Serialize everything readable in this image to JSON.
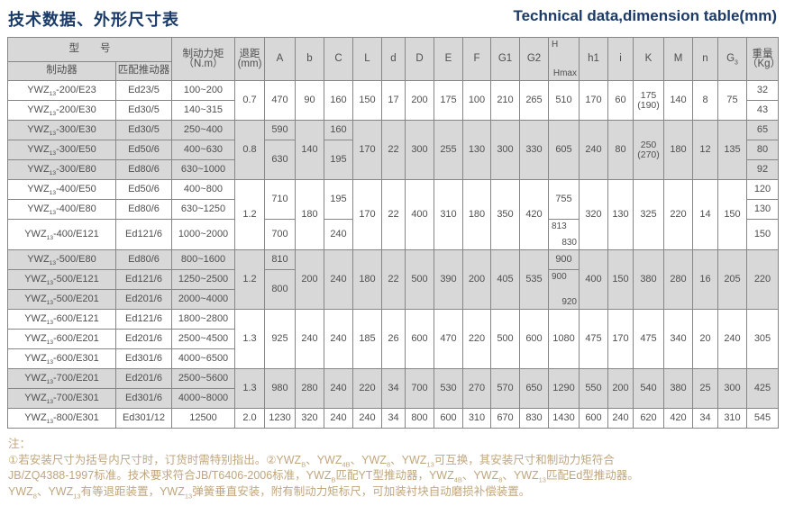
{
  "page": {
    "title_cn": "技术数据、外形尺寸表",
    "title_en": "Technical data,dimension table(mm)"
  },
  "colors": {
    "title_navy": "#1a3a68",
    "header_fill": "#d8d8d8",
    "border_gray": "#868686",
    "note_tan": "#c0a67e"
  },
  "table": {
    "header": {
      "model_group": "型　　号",
      "brake": "制动器",
      "thruster": "匹配推动器",
      "torque_l1": "制动力矩",
      "torque_l2": "（N.m）",
      "gap_l1": "退距",
      "gap_l2": "(mm)",
      "A": "A",
      "b": "b",
      "C": "C",
      "L": "L",
      "d": "d",
      "D": "D",
      "E": "E",
      "F": "F",
      "G1": "G1",
      "G2": "G2",
      "H": "H",
      "Hmax": "Hmax",
      "h1": "h1",
      "i": "i",
      "K": "K",
      "M": "M",
      "n": "n",
      "G3": "G{3}",
      "weight_l1": "重量",
      "weight_l2": "（Kg）"
    },
    "rows": {
      "r1": {
        "model": "YWZ{13}-200/E23",
        "thr": "Ed23/5",
        "tq": "100~200",
        "gap": "0.7",
        "A": "470",
        "b": "90",
        "C": "160",
        "L": "150",
        "d": "17",
        "D": "200",
        "E": "175",
        "F": "100",
        "G1": "210",
        "G2": "265",
        "H": "510",
        "h1": "170",
        "i": "60",
        "K1": "175",
        "K2": "(190)",
        "M": "140",
        "n": "8",
        "G3": "75",
        "wt": "32"
      },
      "r2": {
        "model": "YWZ{13}-200/E30",
        "thr": "Ed30/5",
        "tq": "140~315",
        "wt": "43"
      },
      "r3": {
        "model": "YWZ{13}-300/E30",
        "thr": "Ed30/5",
        "tq": "250~400",
        "gap": "0.8",
        "A": "590",
        "b": "140",
        "C": "160",
        "L": "170",
        "d": "22",
        "D": "300",
        "E": "255",
        "F": "130",
        "G1": "300",
        "G2": "330",
        "H": "605",
        "h1": "240",
        "i": "80",
        "K1": "250",
        "K2": "(270)",
        "M": "180",
        "n": "12",
        "G3": "135",
        "wt": "65"
      },
      "r4": {
        "model": "YWZ{13}-300/E50",
        "thr": "Ed50/6",
        "tq": "400~630",
        "A": "630",
        "C": "195",
        "wt": "80"
      },
      "r5": {
        "model": "YWZ{13}-300/E80",
        "thr": "Ed80/6",
        "tq": "630~1000",
        "wt": "92"
      },
      "r6": {
        "model": "YWZ{13}-400/E50",
        "thr": "Ed50/6",
        "tq": "400~800",
        "gap": "1.2",
        "A": "710",
        "b": "180",
        "C": "195",
        "L": "170",
        "d": "22",
        "D": "400",
        "E": "310",
        "F": "180",
        "G1": "350",
        "G2": "420",
        "H": "755",
        "h1": "320",
        "i": "130",
        "K": "325",
        "M": "220",
        "n": "14",
        "G3": "150",
        "wt": "120"
      },
      "r7": {
        "model": "YWZ{13}-400/E80",
        "thr": "Ed80/6",
        "tq": "630~1250",
        "wt": "130"
      },
      "r8": {
        "model": "YWZ{13}-400/E121",
        "thr": "Ed121/6",
        "tq": "1000~2000",
        "A": "700",
        "C": "240",
        "H_top": "813",
        "H_bot": "830",
        "wt": "150"
      },
      "r9": {
        "model": "YWZ{13}-500/E80",
        "thr": "Ed80/6",
        "tq": "800~1600",
        "gap": "1.2",
        "A": "810",
        "b": "200",
        "C": "240",
        "L": "180",
        "d": "22",
        "D": "500",
        "E": "390",
        "F": "200",
        "G1": "405",
        "G2": "535",
        "H": "900",
        "h1": "400",
        "i": "150",
        "K": "380",
        "M": "280",
        "n": "16",
        "G3": "205",
        "wt": "220"
      },
      "r10": {
        "model": "YWZ{13}-500/E121",
        "thr": "Ed121/6",
        "tq": "1250~2500",
        "A": "800",
        "H_top": "900",
        "H_bot": "920"
      },
      "r11": {
        "model": "YWZ{13}-500/E201",
        "thr": "Ed201/6",
        "tq": "2000~4000"
      },
      "r12": {
        "model": "YWZ{13}-600/E121",
        "thr": "Ed121/6",
        "tq": "1800~2800",
        "gap": "1.3",
        "A": "925",
        "b": "240",
        "C": "240",
        "L": "185",
        "d": "26",
        "D": "600",
        "E": "470",
        "F": "220",
        "G1": "500",
        "G2": "600",
        "H": "1080",
        "h1": "475",
        "i": "170",
        "K": "475",
        "M": "340",
        "n": "20",
        "G3": "240",
        "wt": "305"
      },
      "r13": {
        "model": "YWZ{13}-600/E201",
        "thr": "Ed201/6",
        "tq": "2500~4500"
      },
      "r14": {
        "model": "YWZ{13}-600/E301",
        "thr": "Ed301/6",
        "tq": "4000~6500"
      },
      "r15": {
        "model": "YWZ{13}-700/E201",
        "thr": "Ed201/6",
        "tq": "2500~5600",
        "gap": "1.3",
        "A": "980",
        "b": "280",
        "C": "240",
        "L": "220",
        "d": "34",
        "D": "700",
        "E": "530",
        "F": "270",
        "G1": "570",
        "G2": "650",
        "H": "1290",
        "h1": "550",
        "i": "200",
        "K": "540",
        "M": "380",
        "n": "25",
        "G3": "300",
        "wt": "425"
      },
      "r16": {
        "model": "YWZ{13}-700/E301",
        "thr": "Ed301/6",
        "tq": "4000~8000"
      },
      "r17": {
        "model": "YWZ{13}-800/E301",
        "thr": "Ed301/12",
        "tq": "12500",
        "gap": "2.0",
        "A": "1230",
        "b": "320",
        "C": "240",
        "L": "240",
        "d": "34",
        "D": "800",
        "E": "600",
        "F": "310",
        "G1": "670",
        "G2": "830",
        "H": "1430",
        "h1": "600",
        "i": "240",
        "K": "620",
        "M": "420",
        "n": "34",
        "G3": "310",
        "wt": "545"
      }
    }
  },
  "notes": {
    "label": "注：",
    "line1": "①若安装尺寸为括号内尺寸时，订货时需特别指出。②YWZ{B}、YWZ{4B}、YWZ{8}、YWZ{13}可互换，其安装尺寸和制动力矩符合",
    "line2": "JB/ZQ4388-1997标准。技术要求符合JB/T6406-2006标准，YWZ{B}匹配YT型推动器，YWZ{4B}、YWZ{8}、YWZ{13}匹配Ed型推动器。",
    "line3": "YWZ{8}、YWZ{13}有等退距装置，YWZ{13}弹簧垂直安装，附有制动力矩标尺，可加装衬块自动磨损补偿装置。"
  }
}
